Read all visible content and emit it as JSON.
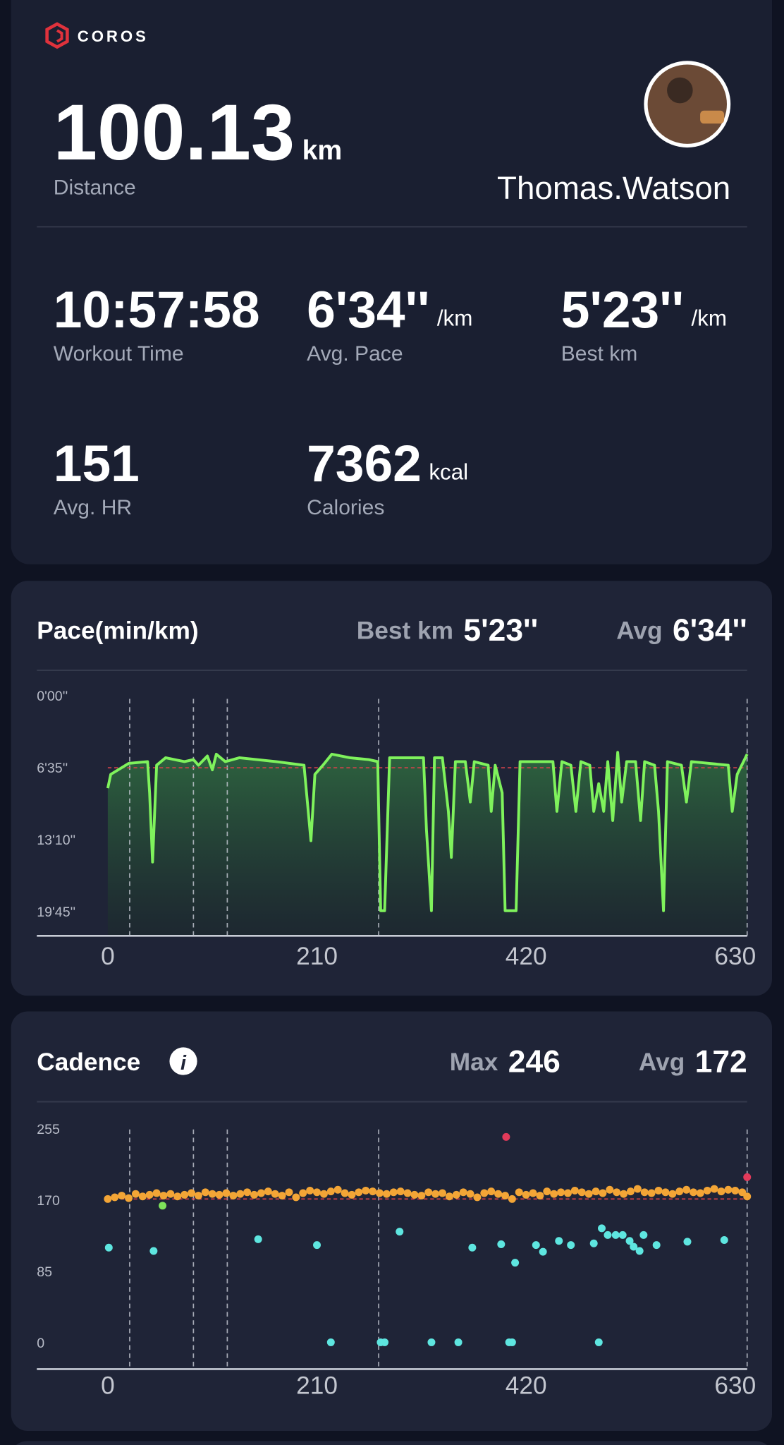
{
  "logo": "COROS",
  "header": {
    "distance": "100.13",
    "distance_unit": "km",
    "distance_label": "Distance",
    "user": "Thomas.Watson"
  },
  "stats": [
    {
      "value": "10:57:58",
      "label": "Workout Time"
    },
    {
      "value": "6'34''",
      "unit": "/km",
      "label": "Avg. Pace"
    },
    {
      "value": "5'23''",
      "unit": "/km",
      "label": "Best km"
    },
    {
      "value": "151",
      "label": "Avg. HR"
    },
    {
      "value": "7362",
      "unit": "kcal",
      "label": "Calories"
    }
  ],
  "chart_data": [
    {
      "type": "line",
      "title": "Pace(min/km)",
      "summary": [
        {
          "label": "Best km",
          "value": "5'23''"
        },
        {
          "label": "Avg",
          "value": "6'34''"
        }
      ],
      "x": [
        0,
        3,
        21,
        40,
        42,
        45,
        49,
        58,
        77,
        86,
        91,
        100,
        105,
        109,
        118,
        132,
        169,
        197,
        204,
        208,
        216,
        225,
        243,
        262,
        271,
        274,
        278,
        283,
        299,
        317,
        320,
        325,
        328,
        336,
        342,
        345,
        349,
        359,
        364,
        368,
        382,
        385,
        389,
        396,
        399,
        405,
        410,
        414,
        428,
        447,
        451,
        456,
        465,
        470,
        475,
        484,
        488,
        493,
        498,
        502,
        507,
        512,
        516,
        521,
        530,
        535,
        539,
        549,
        553,
        558,
        562,
        576,
        581,
        586,
        604,
        623,
        627,
        632,
        642
      ],
      "series": [
        {
          "color": "#7ff25c",
          "values": [
            506,
            430,
            370,
            360,
            532,
            912,
            380,
            339,
            360,
            349,
            380,
            329,
            405,
            319,
            360,
            339,
            360,
            380,
            795,
            430,
            380,
            319,
            339,
            349,
            360,
            1179,
            1179,
            339,
            339,
            339,
            734,
            1179,
            339,
            339,
            633,
            886,
            360,
            360,
            582,
            360,
            380,
            633,
            380,
            532,
            1179,
            1179,
            1179,
            360,
            360,
            360,
            633,
            360,
            380,
            633,
            360,
            380,
            633,
            481,
            633,
            360,
            684,
            309,
            582,
            360,
            360,
            684,
            360,
            380,
            633,
            1179,
            360,
            380,
            582,
            360,
            370,
            380,
            633,
            430,
            319
          ]
        }
      ],
      "xlim": [
        0,
        642
      ],
      "xticks": [
        0,
        210,
        420,
        630
      ],
      "ylim": [
        1317,
        0
      ],
      "yticks": [
        {
          "value": 0,
          "label": "0'00''"
        },
        {
          "value": 395,
          "label": "6'35''"
        },
        {
          "value": 790,
          "label": "13'10''"
        },
        {
          "value": 1185,
          "label": "19'45''"
        }
      ],
      "markers": [
        22,
        86,
        120,
        272,
        642
      ],
      "avg_line": 394,
      "avg_color": "#d9434b"
    },
    {
      "type": "scatter",
      "title": "Cadence",
      "summary": [
        {
          "label": "Max",
          "value": "246"
        },
        {
          "label": "Avg",
          "value": "172"
        }
      ],
      "series": [
        {
          "color": "#f3a536",
          "x": [
            0,
            7,
            14,
            21,
            28,
            35,
            42,
            49,
            56,
            63,
            70,
            77,
            84,
            91,
            98,
            105,
            112,
            119,
            126,
            133,
            140,
            147,
            154,
            161,
            168,
            175,
            182,
            189,
            196,
            203,
            210,
            217,
            224,
            231,
            238,
            245,
            252,
            259,
            266,
            273,
            280,
            287,
            294,
            301,
            308,
            315,
            322,
            329,
            336,
            343,
            350,
            357,
            364,
            371,
            378,
            385,
            392,
            399,
            406,
            413,
            420,
            427,
            434,
            441,
            448,
            455,
            462,
            469,
            476,
            483,
            490,
            497,
            504,
            511,
            518,
            525,
            532,
            539,
            546,
            553,
            560,
            567,
            574,
            581,
            588,
            595,
            602,
            609,
            616,
            623,
            630,
            637,
            642
          ],
          "values": [
            172,
            174,
            176,
            173,
            178,
            175,
            177,
            179,
            176,
            178,
            175,
            177,
            179,
            176,
            180,
            178,
            177,
            179,
            176,
            178,
            180,
            177,
            179,
            181,
            178,
            176,
            180,
            174,
            179,
            182,
            180,
            178,
            181,
            183,
            179,
            177,
            180,
            182,
            181,
            179,
            178,
            180,
            181,
            179,
            177,
            176,
            180,
            178,
            179,
            175,
            177,
            180,
            178,
            174,
            179,
            181,
            178,
            176,
            172,
            180,
            177,
            179,
            176,
            181,
            178,
            180,
            179,
            182,
            180,
            178,
            181,
            179,
            183,
            180,
            178,
            181,
            184,
            180,
            179,
            182,
            180,
            178,
            181,
            183,
            180,
            179,
            182,
            184,
            181,
            183,
            182,
            180,
            175
          ]
        },
        {
          "color": "#5ee6e0",
          "x": [
            1,
            46,
            151,
            210,
            224,
            274,
            278,
            293,
            325,
            352,
            366,
            395,
            403,
            406,
            409,
            430,
            437,
            453,
            465,
            488,
            493,
            496,
            502,
            510,
            517,
            524,
            528,
            534,
            538,
            551,
            582,
            619
          ],
          "values": [
            114,
            110,
            124,
            117,
            1,
            1,
            1,
            133,
            1,
            1,
            114,
            118,
            1,
            1,
            96,
            117,
            109,
            122,
            117,
            119,
            1,
            137,
            129,
            129,
            129,
            122,
            115,
            110,
            129,
            117,
            121,
            123
          ]
        },
        {
          "color": "#7ee35a",
          "x": [
            55
          ],
          "values": [
            164
          ]
        },
        {
          "color": "#e23a5a",
          "x": [
            400,
            642
          ],
          "values": [
            246,
            198
          ]
        }
      ],
      "xlim": [
        0,
        642
      ],
      "xticks": [
        0,
        210,
        420,
        630
      ],
      "ylim": [
        -31,
        277
      ],
      "yticks": [
        255,
        170,
        85,
        0
      ],
      "markers": [
        22,
        86,
        120,
        272,
        642
      ],
      "avg_line": 172,
      "avg_color": "#d9434b"
    }
  ]
}
